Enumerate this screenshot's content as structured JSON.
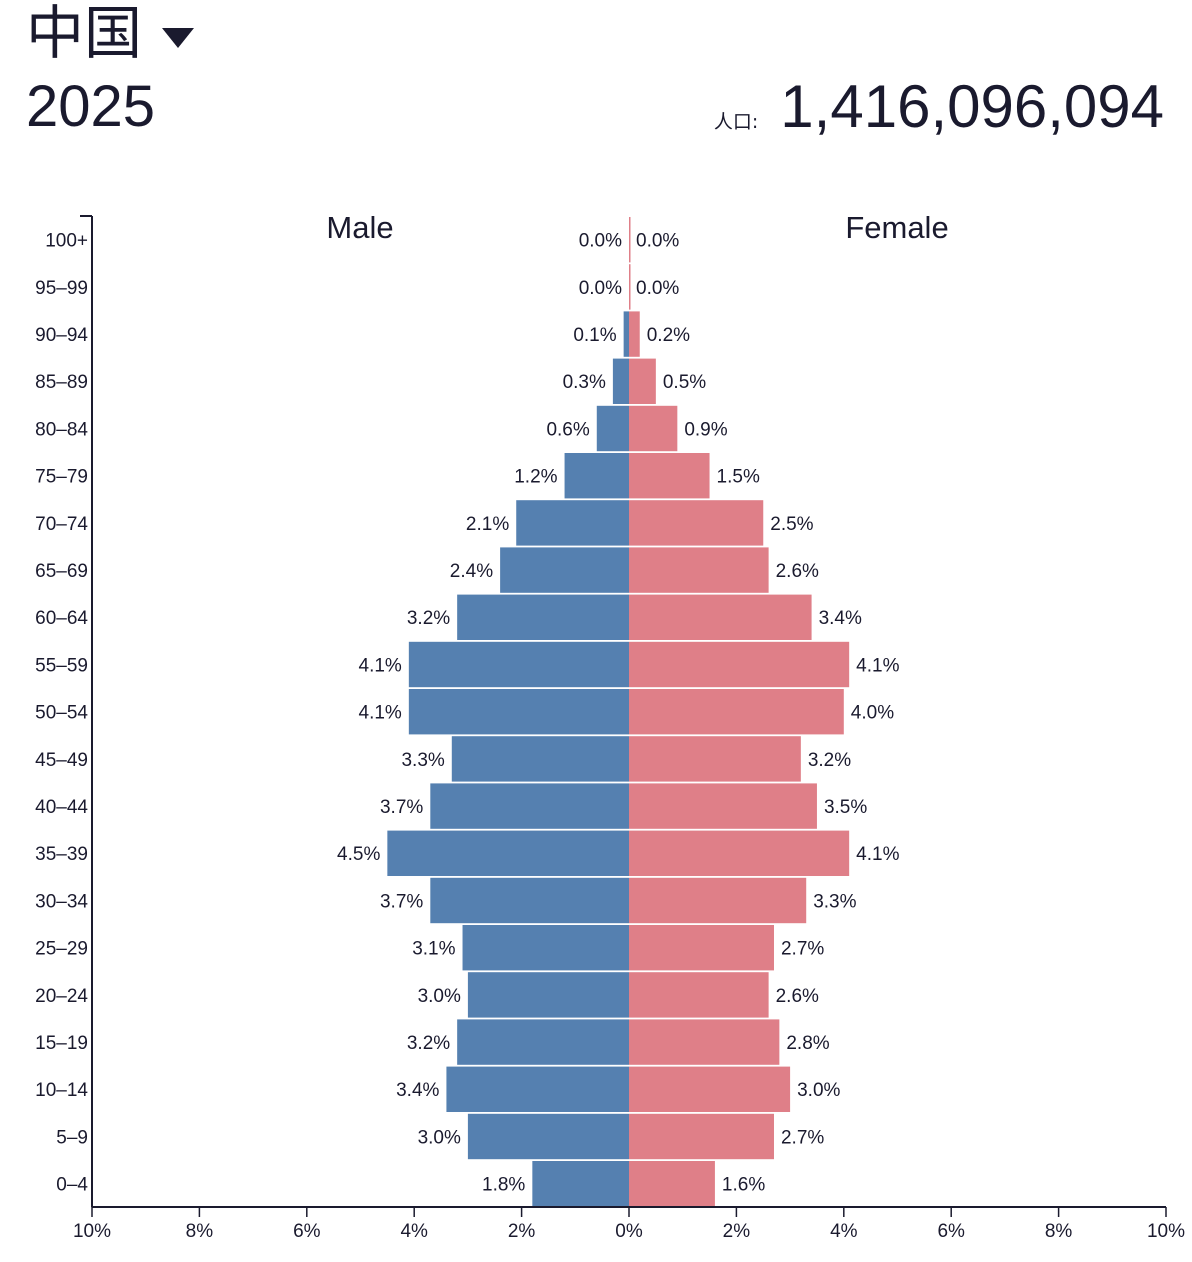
{
  "header": {
    "country": "中国",
    "country_dropdown_icon": "caret-down-icon",
    "year": "2025",
    "population_label": "人口:",
    "population_value": "1,416,096,094"
  },
  "colors": {
    "male": "#5580b0",
    "female": "#df7f88",
    "text": "#1a1a2e",
    "axis": "#1a1a2e"
  },
  "chart_data": {
    "type": "bar",
    "orientation": "horizontal",
    "subtype": "population-pyramid",
    "categories": [
      "100+",
      "95–99",
      "90–94",
      "85–89",
      "80–84",
      "75–79",
      "70–74",
      "65–69",
      "60–64",
      "55–59",
      "50–54",
      "45–49",
      "40–44",
      "35–39",
      "30–34",
      "25–29",
      "20–24",
      "15–19",
      "10–14",
      "5–9",
      "0–4"
    ],
    "series": [
      {
        "name": "Male",
        "values": [
          0.0,
          0.0,
          0.1,
          0.3,
          0.6,
          1.2,
          2.1,
          2.4,
          3.2,
          4.1,
          4.1,
          3.3,
          3.7,
          4.5,
          3.7,
          3.1,
          3.0,
          3.2,
          3.4,
          3.0,
          1.8
        ],
        "labels": [
          "0.0%",
          "0.0%",
          "0.1%",
          "0.3%",
          "0.6%",
          "1.2%",
          "2.1%",
          "2.4%",
          "3.2%",
          "4.1%",
          "4.1%",
          "3.3%",
          "3.7%",
          "4.5%",
          "3.7%",
          "3.1%",
          "3.0%",
          "3.2%",
          "3.4%",
          "3.0%",
          "1.8%"
        ]
      },
      {
        "name": "Female",
        "values": [
          0.0,
          0.0,
          0.2,
          0.5,
          0.9,
          1.5,
          2.5,
          2.6,
          3.4,
          4.1,
          4.0,
          3.2,
          3.5,
          4.1,
          3.3,
          2.7,
          2.6,
          2.8,
          3.0,
          2.7,
          1.6
        ],
        "labels": [
          "0.0%",
          "0.0%",
          "0.2%",
          "0.5%",
          "0.9%",
          "1.5%",
          "2.5%",
          "2.6%",
          "3.4%",
          "4.1%",
          "4.0%",
          "3.2%",
          "3.5%",
          "4.1%",
          "3.3%",
          "2.7%",
          "2.6%",
          "2.8%",
          "3.0%",
          "2.7%",
          "1.6%"
        ]
      }
    ],
    "xlim": [
      -10,
      10
    ],
    "x_ticks": [
      -10,
      -8,
      -6,
      -4,
      -2,
      0,
      2,
      4,
      6,
      8,
      10
    ],
    "x_tick_labels": [
      "10%",
      "8%",
      "6%",
      "4%",
      "2%",
      "0%",
      "2%",
      "4%",
      "6%",
      "8%",
      "10%"
    ],
    "grid": false,
    "legend": "none"
  }
}
